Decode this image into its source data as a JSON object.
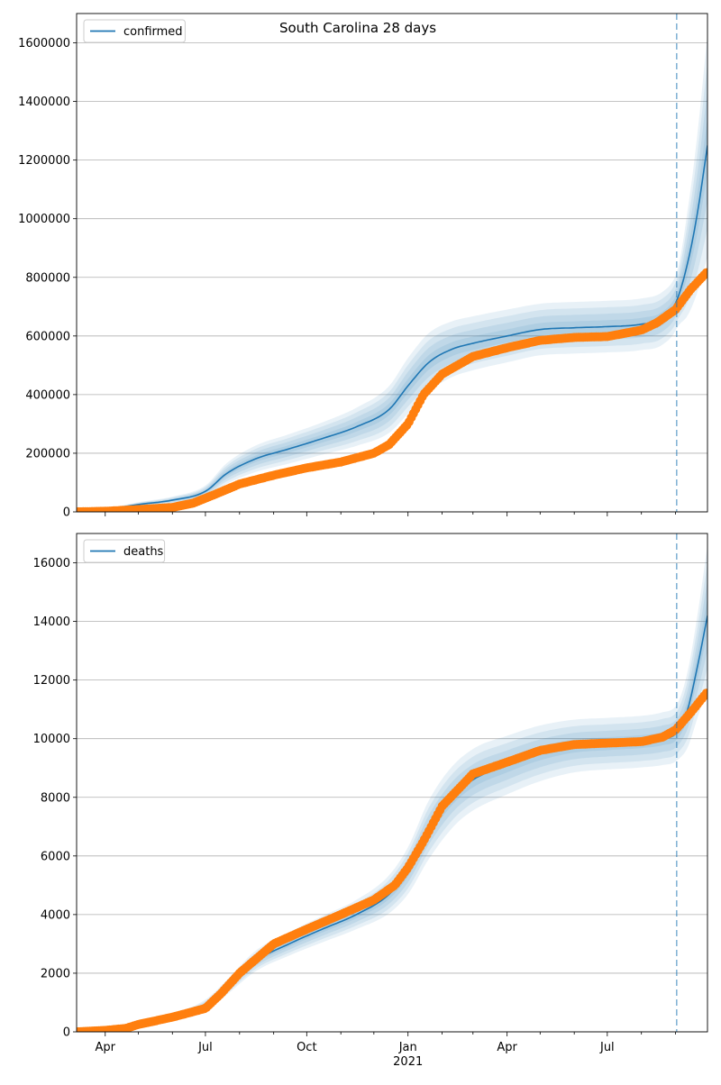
{
  "figure": {
    "title": "South Carolina 28 days"
  },
  "chart_data": [
    {
      "type": "line",
      "legend": [
        "confirmed"
      ],
      "legend_placement": "top-left",
      "grid": "horizontal",
      "ylim": [
        0,
        1700000
      ],
      "yticks": [
        0,
        200000,
        400000,
        600000,
        800000,
        1000000,
        1200000,
        1400000,
        1600000
      ],
      "xlim": [
        "2020-03-06",
        "2021-09-30"
      ],
      "forecast_start": "2021-09-02",
      "model": {
        "name": "confirmed",
        "color": "#1f77b4",
        "x": [
          "2020-03-06",
          "2020-04-01",
          "2020-05-01",
          "2020-06-01",
          "2020-07-01",
          "2020-07-20",
          "2020-08-15",
          "2020-09-15",
          "2020-10-15",
          "2020-11-15",
          "2020-12-15",
          "2021-01-01",
          "2021-01-20",
          "2021-02-10",
          "2021-03-01",
          "2021-04-01",
          "2021-05-01",
          "2021-06-01",
          "2021-07-01",
          "2021-08-01",
          "2021-08-20",
          "2021-09-02",
          "2021-09-12",
          "2021-09-20",
          "2021-09-30"
        ],
        "y": [
          0,
          8000,
          25000,
          40000,
          70000,
          130000,
          180000,
          215000,
          250000,
          290000,
          350000,
          430000,
          510000,
          555000,
          575000,
          600000,
          622000,
          628000,
          632000,
          640000,
          660000,
          720000,
          850000,
          1000000,
          1250000
        ],
        "band": [
          0,
          3000,
          8000,
          12000,
          20000,
          35000,
          45000,
          50000,
          55000,
          65000,
          80000,
          95000,
          100000,
          95000,
          92000,
          90000,
          88000,
          88000,
          88000,
          88000,
          90000,
          95000,
          180000,
          260000,
          380000
        ]
      },
      "observed": {
        "color": "#ff7f0e",
        "x": [
          "2020-03-06",
          "2020-04-01",
          "2020-05-01",
          "2020-06-01",
          "2020-06-20",
          "2020-07-10",
          "2020-08-01",
          "2020-09-01",
          "2020-10-01",
          "2020-11-01",
          "2020-12-01",
          "2020-12-15",
          "2021-01-01",
          "2021-01-15",
          "2021-02-01",
          "2021-03-01",
          "2021-04-01",
          "2021-05-01",
          "2021-06-01",
          "2021-07-01",
          "2021-08-01",
          "2021-08-15",
          "2021-09-01",
          "2021-09-15",
          "2021-09-30"
        ],
        "y": [
          0,
          2000,
          8000,
          15000,
          30000,
          60000,
          95000,
          125000,
          150000,
          170000,
          200000,
          230000,
          300000,
          400000,
          470000,
          530000,
          560000,
          585000,
          595000,
          598000,
          620000,
          645000,
          690000,
          760000,
          820000
        ]
      }
    },
    {
      "type": "line",
      "legend": [
        "deaths"
      ],
      "legend_placement": "top-left",
      "grid": "horizontal",
      "ylim": [
        0,
        17000
      ],
      "yticks": [
        0,
        2000,
        4000,
        6000,
        8000,
        10000,
        12000,
        14000,
        16000
      ],
      "xlim": [
        "2020-03-06",
        "2021-09-30"
      ],
      "xticks": [
        "Apr",
        "Jul",
        "Oct",
        "Jan",
        "Apr",
        "Jul"
      ],
      "xtick_dates": [
        "2020-04-01",
        "2020-07-01",
        "2020-10-01",
        "2021-01-01",
        "2021-04-01",
        "2021-07-01"
      ],
      "year_label": "2021",
      "year_label_date": "2021-01-01",
      "forecast_start": "2021-09-02",
      "model": {
        "name": "deaths",
        "color": "#1f77b4",
        "x": [
          "2020-03-06",
          "2020-04-01",
          "2020-05-01",
          "2020-06-01",
          "2020-07-01",
          "2020-07-20",
          "2020-08-15",
          "2020-09-15",
          "2020-10-15",
          "2020-11-15",
          "2020-12-15",
          "2021-01-01",
          "2021-01-20",
          "2021-02-10",
          "2021-03-01",
          "2021-04-01",
          "2021-05-01",
          "2021-06-01",
          "2021-07-01",
          "2021-08-01",
          "2021-08-20",
          "2021-09-02",
          "2021-09-12",
          "2021-09-20",
          "2021-09-30"
        ],
        "y": [
          0,
          50,
          200,
          500,
          900,
          1500,
          2400,
          3000,
          3500,
          4000,
          4700,
          5500,
          6900,
          8000,
          8600,
          9100,
          9500,
          9750,
          9830,
          9900,
          10000,
          10200,
          11000,
          12300,
          14200
        ],
        "band": [
          0,
          20,
          60,
          120,
          200,
          250,
          350,
          400,
          450,
          500,
          650,
          800,
          1000,
          1050,
          1050,
          1000,
          950,
          900,
          880,
          880,
          900,
          950,
          1300,
          1700,
          2400
        ]
      },
      "observed": {
        "color": "#ff7f0e",
        "x": [
          "2020-03-06",
          "2020-04-01",
          "2020-04-20",
          "2020-05-01",
          "2020-06-01",
          "2020-07-01",
          "2020-07-15",
          "2020-08-01",
          "2020-09-01",
          "2020-10-01",
          "2020-11-01",
          "2020-12-01",
          "2020-12-20",
          "2021-01-01",
          "2021-01-15",
          "2021-02-01",
          "2021-03-01",
          "2021-04-01",
          "2021-05-01",
          "2021-06-01",
          "2021-07-01",
          "2021-08-01",
          "2021-08-20",
          "2021-09-01",
          "2021-09-15",
          "2021-09-30"
        ],
        "y": [
          0,
          50,
          120,
          250,
          500,
          800,
          1300,
          2000,
          3000,
          3500,
          4000,
          4500,
          5000,
          5600,
          6500,
          7700,
          8800,
          9200,
          9600,
          9800,
          9850,
          9900,
          10050,
          10300,
          10900,
          11600
        ]
      }
    }
  ]
}
